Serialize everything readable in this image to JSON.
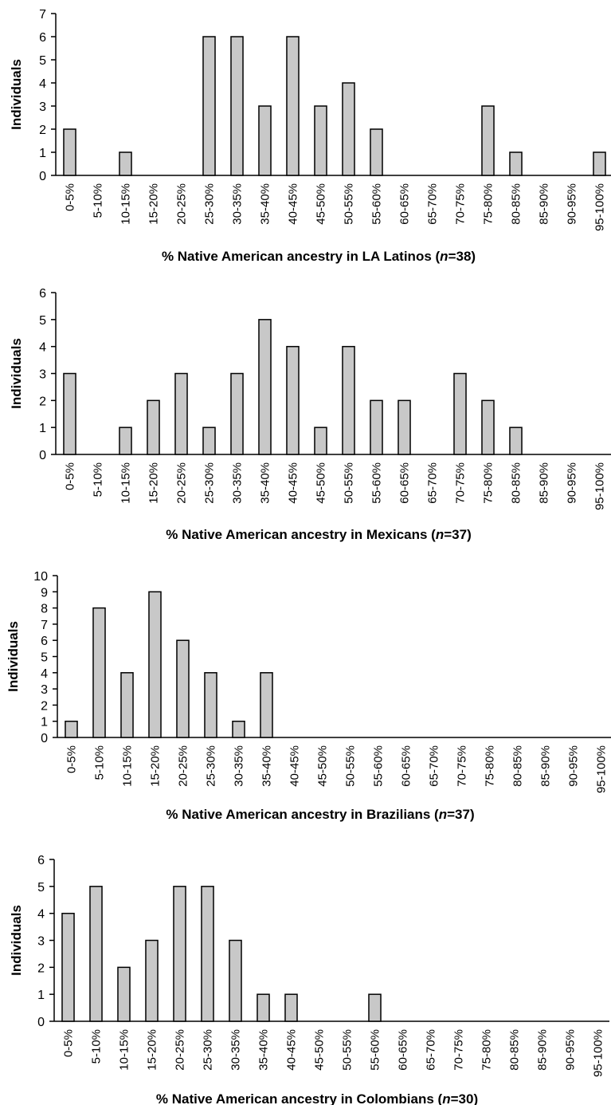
{
  "chart_data": [
    {
      "type": "bar",
      "categories": [
        "0-5%",
        "5-10%",
        "10-15%",
        "15-20%",
        "20-25%",
        "25-30%",
        "30-35%",
        "35-40%",
        "40-45%",
        "45-50%",
        "50-55%",
        "55-60%",
        "60-65%",
        "65-70%",
        "70-75%",
        "75-80%",
        "80-85%",
        "85-90%",
        "90-95%",
        "95-100%"
      ],
      "values": [
        2,
        0,
        1,
        0,
        0,
        6,
        6,
        3,
        6,
        3,
        4,
        2,
        0,
        0,
        0,
        3,
        1,
        0,
        0,
        1
      ],
      "ylabel": "Individuals",
      "xlabel_prefix": "% Native American ancestry in LA Latinos (",
      "xlabel_n": "n",
      "xlabel_suffix": "=38)",
      "ylim": [
        0,
        7
      ],
      "yticks": [
        0,
        1,
        2,
        3,
        4,
        5,
        6,
        7
      ],
      "grid": false
    },
    {
      "type": "bar",
      "categories": [
        "0-5%",
        "5-10%",
        "10-15%",
        "15-20%",
        "20-25%",
        "25-30%",
        "30-35%",
        "35-40%",
        "40-45%",
        "45-50%",
        "50-55%",
        "55-60%",
        "60-65%",
        "65-70%",
        "70-75%",
        "75-80%",
        "80-85%",
        "85-90%",
        "90-95%",
        "95-100%"
      ],
      "values": [
        3,
        0,
        1,
        2,
        3,
        1,
        3,
        5,
        4,
        1,
        4,
        2,
        2,
        0,
        3,
        2,
        1,
        0,
        0,
        0
      ],
      "ylabel": "Individuals",
      "xlabel_prefix": "% Native American ancestry in Mexicans (",
      "xlabel_n": "n",
      "xlabel_suffix": "=37)",
      "ylim": [
        0,
        6
      ],
      "yticks": [
        0,
        1,
        2,
        3,
        4,
        5,
        6
      ],
      "grid": false
    },
    {
      "type": "bar",
      "categories": [
        "0-5%",
        "5-10%",
        "10-15%",
        "15-20%",
        "20-25%",
        "25-30%",
        "30-35%",
        "35-40%",
        "40-45%",
        "45-50%",
        "50-55%",
        "55-60%",
        "60-65%",
        "65-70%",
        "70-75%",
        "75-80%",
        "80-85%",
        "85-90%",
        "90-95%",
        "95-100%"
      ],
      "values": [
        1,
        8,
        4,
        9,
        6,
        4,
        1,
        4,
        0,
        0,
        0,
        0,
        0,
        0,
        0,
        0,
        0,
        0,
        0,
        0
      ],
      "ylabel": "Individuals",
      "xlabel_prefix": "% Native American ancestry in Brazilians (",
      "xlabel_n": "n",
      "xlabel_suffix": "=37)",
      "ylim": [
        0,
        10
      ],
      "yticks": [
        0,
        1,
        2,
        3,
        4,
        5,
        6,
        7,
        8,
        9,
        10
      ],
      "grid": false
    },
    {
      "type": "bar",
      "categories": [
        "0-5%",
        "5-10%",
        "10-15%",
        "15-20%",
        "20-25%",
        "25-30%",
        "30-35%",
        "35-40%",
        "40-45%",
        "45-50%",
        "50-55%",
        "55-60%",
        "60-65%",
        "65-70%",
        "70-75%",
        "75-80%",
        "80-85%",
        "85-90%",
        "90-95%",
        "95-100%"
      ],
      "values": [
        4,
        5,
        2,
        3,
        5,
        5,
        3,
        1,
        1,
        0,
        0,
        1,
        0,
        0,
        0,
        0,
        0,
        0,
        0,
        0
      ],
      "ylabel": "Individuals",
      "xlabel_prefix": "% Native American ancestry in Colombians (",
      "xlabel_n": "n",
      "xlabel_suffix": "=30)",
      "ylim": [
        0,
        6
      ],
      "yticks": [
        0,
        1,
        2,
        3,
        4,
        5,
        6
      ],
      "grid": false
    }
  ]
}
